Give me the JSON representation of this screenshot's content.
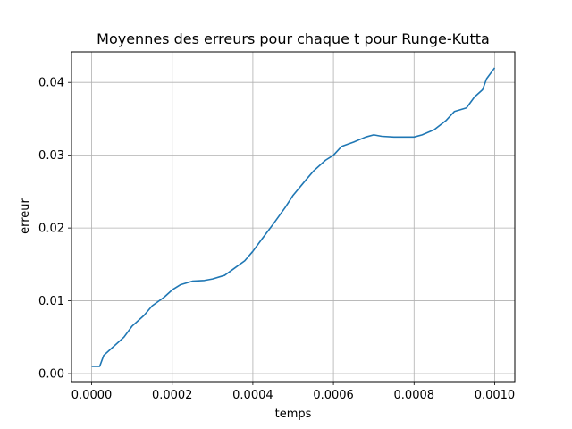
{
  "chart_data": {
    "type": "line",
    "title": "Moyennes des erreurs pour chaque t pour Runge-Kutta",
    "xlabel": "temps",
    "ylabel": "erreur",
    "xlim": [
      -5e-05,
      0.00105
    ],
    "ylim": [
      -0.0011,
      0.0442
    ],
    "grid": true,
    "x_ticks": [
      0.0,
      0.0002,
      0.0004,
      0.0006,
      0.0008,
      0.001
    ],
    "x_tick_labels": [
      "0.0000",
      "0.0002",
      "0.0004",
      "0.0006",
      "0.0008",
      "0.0010"
    ],
    "y_ticks": [
      0.0,
      0.01,
      0.02,
      0.03,
      0.04
    ],
    "y_tick_labels": [
      "0.00",
      "0.01",
      "0.02",
      "0.03",
      "0.04"
    ],
    "series": [
      {
        "color": "#1f77b4",
        "x": [
          0.0,
          2e-05,
          3e-05,
          5e-05,
          8e-05,
          0.0001,
          0.00013,
          0.00015,
          0.00018,
          0.0002,
          0.00022,
          0.00025,
          0.00028,
          0.0003,
          0.00033,
          0.00035,
          0.00038,
          0.0004,
          0.00042,
          0.00045,
          0.00048,
          0.0005,
          0.00053,
          0.00055,
          0.00058,
          0.0006,
          0.00062,
          0.00065,
          0.00068,
          0.0007,
          0.00072,
          0.00075,
          0.00078,
          0.0008,
          0.00082,
          0.00085,
          0.00088,
          0.0009,
          0.00093,
          0.00095,
          0.00097,
          0.00098,
          0.001
        ],
        "y": [
          0.001,
          0.001,
          0.0025,
          0.0035,
          0.005,
          0.0065,
          0.008,
          0.0093,
          0.0105,
          0.0115,
          0.0122,
          0.0127,
          0.0128,
          0.013,
          0.0135,
          0.0143,
          0.0155,
          0.0168,
          0.0183,
          0.0205,
          0.0228,
          0.0245,
          0.0265,
          0.0278,
          0.0293,
          0.03,
          0.0312,
          0.0318,
          0.0325,
          0.0328,
          0.0326,
          0.0325,
          0.0325,
          0.0325,
          0.0328,
          0.0335,
          0.0348,
          0.036,
          0.0365,
          0.038,
          0.039,
          0.0405,
          0.042
        ]
      }
    ]
  }
}
